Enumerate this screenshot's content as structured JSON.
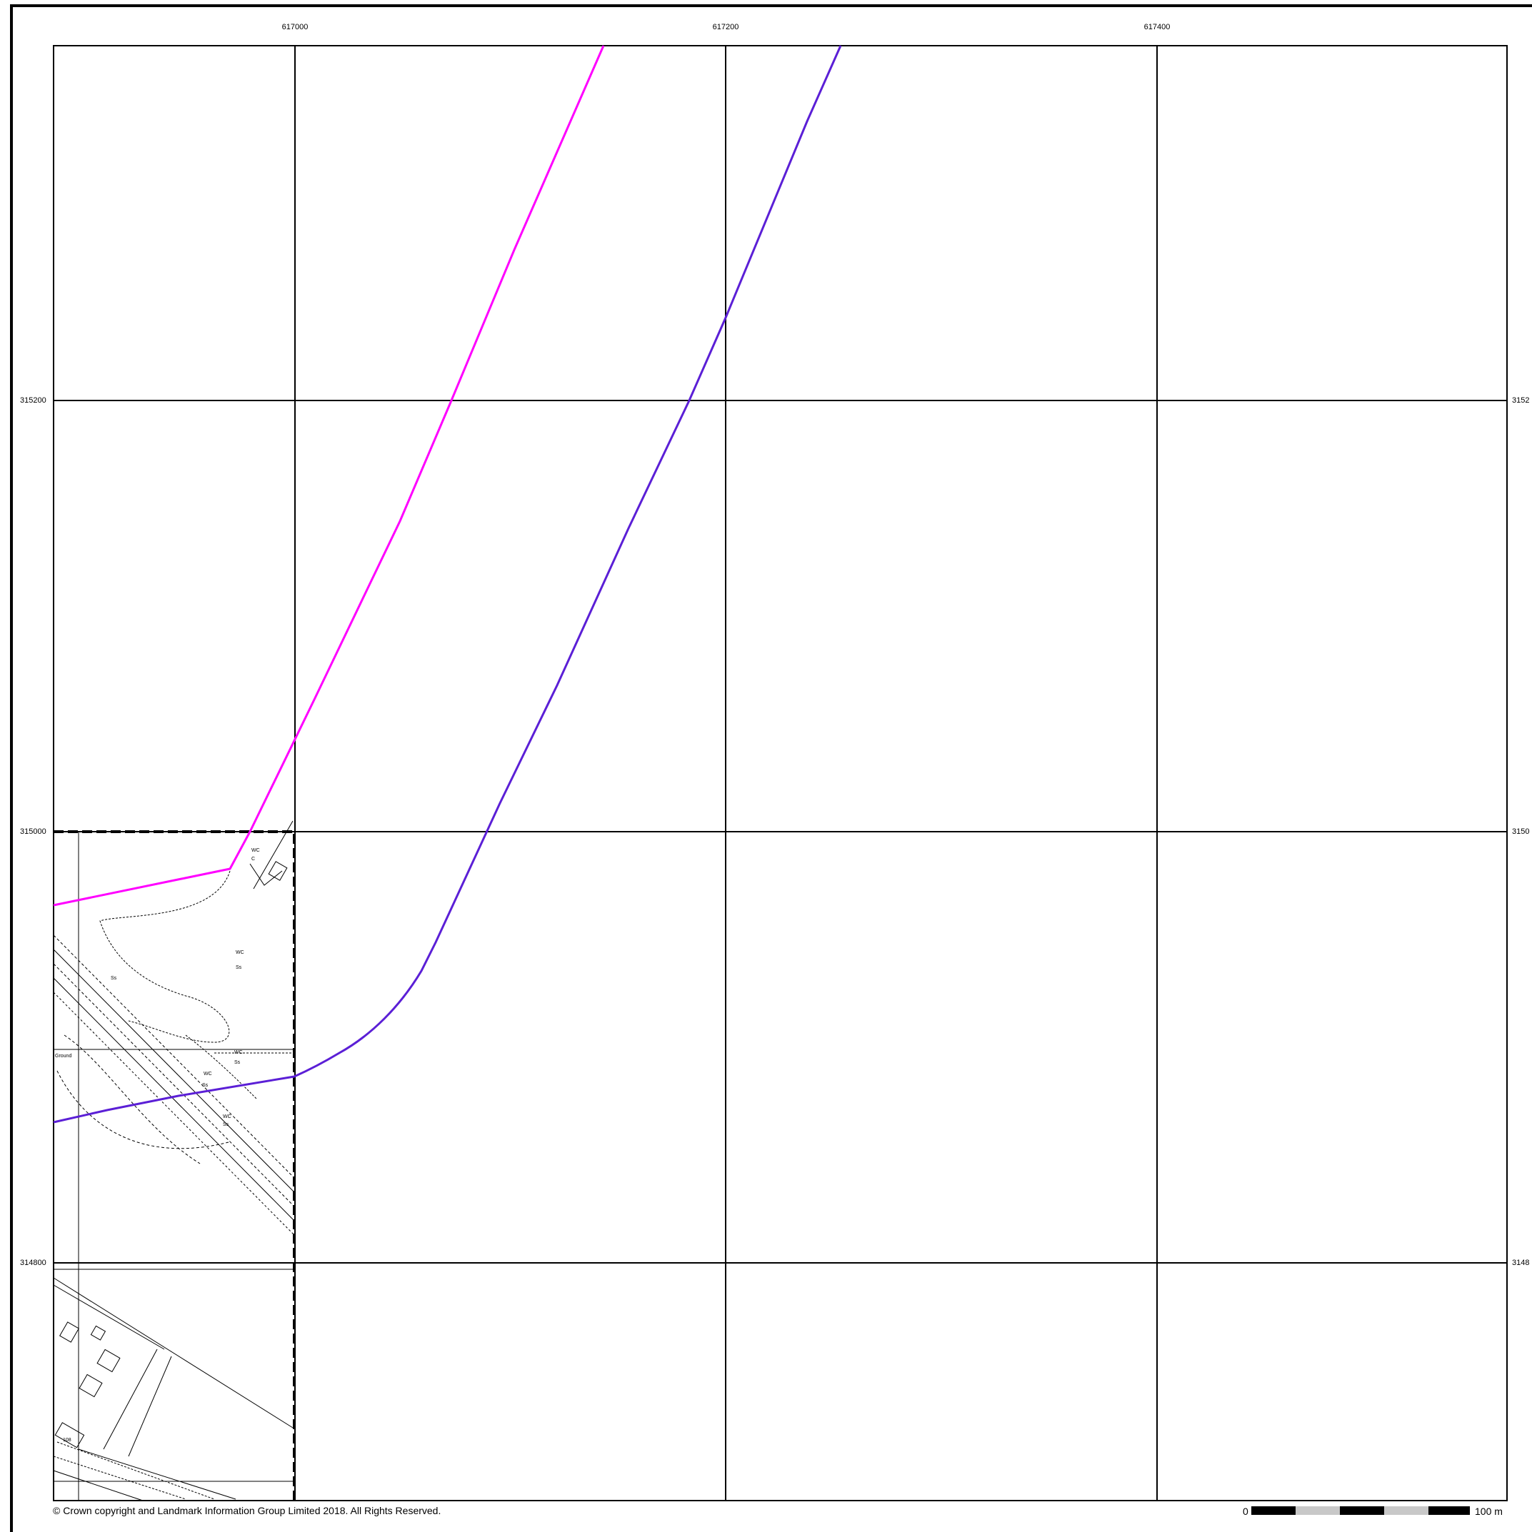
{
  "map": {
    "grid_x_labels": [
      "617000",
      "617200",
      "617400"
    ],
    "grid_y_labels": [
      "315200",
      "315000",
      "314800"
    ],
    "grid_y_labels_right": [
      "3152",
      "3150",
      "3148"
    ],
    "inset_text": [
      "WC",
      "C",
      "WC",
      "Ss",
      "Ss",
      "WC",
      "Ss",
      "WC",
      "Ss",
      "WC",
      "Ss",
      "Ground",
      "108"
    ],
    "route_colors": {
      "magenta": "#ff00ff",
      "violet": "#5b1fd6"
    }
  },
  "footer": {
    "copyright": "© Crown copyright and Landmark Information Group Limited 2018.  All Rights Reserved.",
    "scale_start": "0",
    "scale_end": "100 m"
  }
}
